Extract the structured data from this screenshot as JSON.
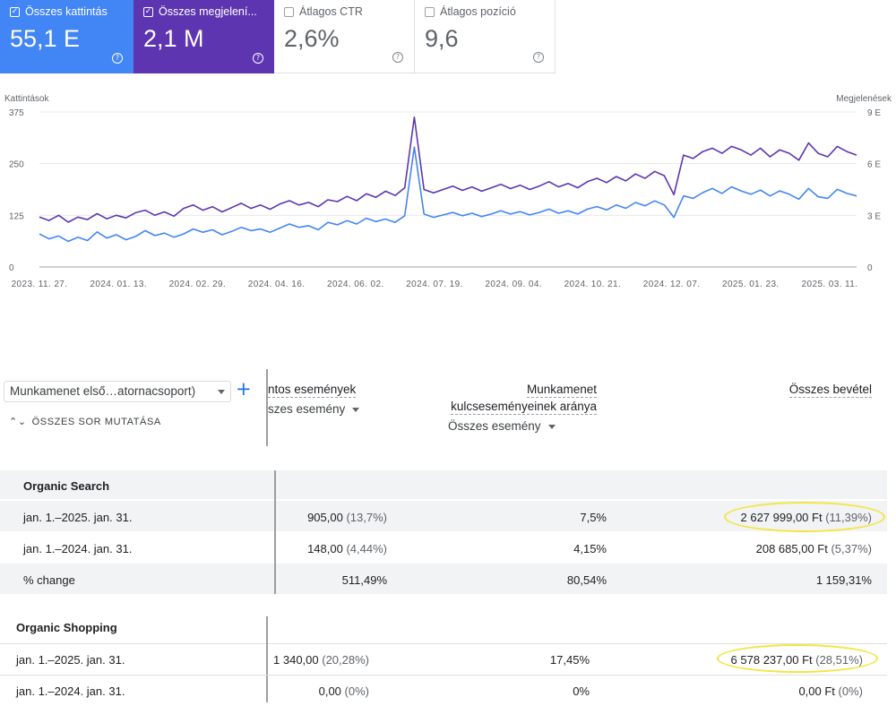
{
  "metrics": [
    {
      "label": "Összes kattintás",
      "value": "55,1 E",
      "checked": true,
      "color": "#4285f4"
    },
    {
      "label": "Összes megjelení...",
      "value": "2,1 M",
      "checked": true,
      "color": "#5e35b1"
    },
    {
      "label": "Átlagos CTR",
      "value": "2,6%",
      "checked": false
    },
    {
      "label": "Átlagos pozíció",
      "value": "9,6",
      "checked": false
    }
  ],
  "chart_data": {
    "type": "line",
    "left_axis": {
      "title": "Kattintások",
      "ticks": [
        "0",
        "125",
        "250",
        "375"
      ],
      "range": [
        0,
        375
      ]
    },
    "right_axis": {
      "title": "Megjelenések",
      "ticks": [
        "0",
        "3 E",
        "6 E",
        "9 E"
      ],
      "range": [
        0,
        9000
      ]
    },
    "x_ticks": [
      "2023. 11. 27.",
      "2024. 01. 13.",
      "2024. 02. 29.",
      "2024. 04. 16.",
      "2024. 06. 02.",
      "2024. 07. 19.",
      "2024. 09. 04.",
      "2024. 10. 21.",
      "2024. 12. 07.",
      "2025. 01. 23.",
      "2025. 03. 11."
    ],
    "grid": true,
    "series": [
      {
        "color": "#4285f4",
        "axis": "left",
        "values": [
          80,
          68,
          75,
          62,
          72,
          64,
          85,
          70,
          78,
          66,
          74,
          88,
          76,
          82,
          72,
          80,
          92,
          84,
          90,
          78,
          86,
          96,
          88,
          92,
          84,
          94,
          104,
          96,
          100,
          90,
          108,
          102,
          112,
          104,
          118,
          110,
          116,
          108,
          124,
          290,
          128,
          120,
          126,
          132,
          124,
          130,
          122,
          128,
          136,
          128,
          134,
          126,
          132,
          140,
          130,
          136,
          128,
          140,
          146,
          138,
          150,
          142,
          156,
          148,
          160,
          150,
          120,
          172,
          166,
          180,
          190,
          178,
          194,
          184,
          176,
          186,
          172,
          184,
          176,
          164,
          190,
          170,
          166,
          188,
          178,
          172
        ]
      },
      {
        "color": "#5e35b1",
        "axis": "right",
        "values": [
          2900,
          2700,
          3000,
          2600,
          2900,
          2750,
          3100,
          2800,
          3000,
          2850,
          3150,
          3300,
          3000,
          3200,
          2950,
          3400,
          3600,
          3300,
          3500,
          3200,
          3450,
          3700,
          3400,
          3600,
          3350,
          3650,
          3850,
          3600,
          3750,
          3500,
          3900,
          3800,
          4100,
          3850,
          4250,
          4050,
          4400,
          4150,
          4600,
          8700,
          4500,
          4300,
          4500,
          4700,
          4450,
          4650,
          4400,
          4600,
          4800,
          4550,
          4750,
          4500,
          4700,
          4950,
          4650,
          4850,
          4600,
          4950,
          5150,
          4900,
          5250,
          5000,
          5400,
          5150,
          5550,
          5300,
          4200,
          6500,
          6300,
          6700,
          6900,
          6600,
          7000,
          6800,
          6500,
          6900,
          6400,
          6800,
          6600,
          6200,
          7200,
          6600,
          6400,
          7000,
          6700,
          6500
        ]
      }
    ]
  },
  "table": {
    "dimension_select": "Munkamenet első…atornacsoport)",
    "add_button": "+",
    "show_all": "ÖSSZES SOR MUTATÁSA",
    "col1_title": "ntos események",
    "col1_sub": "szes esemény",
    "col2_title_1": "Munkamenet",
    "col2_title_2": "kulcseseményeinek aránya",
    "col2_sub": "Összes esemény",
    "col3_title": "Összes bevétel",
    "sections": [
      {
        "title": "Organic Search",
        "rows": [
          {
            "label": "jan. 1.–2025. jan. 31.",
            "c1": "905,00",
            "c1p": "(13,7%)",
            "c2": "7,5%",
            "c3": "2 627 999,00 Ft",
            "c3p": "(11,39%)",
            "highlight": true
          },
          {
            "label": "jan. 1.–2024. jan. 31.",
            "c1": "148,00",
            "c1p": "(4,44%)",
            "c2": "4,15%",
            "c3": "208 685,00 Ft",
            "c3p": "(5,37%)",
            "highlight": false
          },
          {
            "label": "% change",
            "c1": "511,49%",
            "c1p": "",
            "c2": "80,54%",
            "c3": "1 159,31%",
            "c3p": "",
            "highlight": false
          }
        ]
      },
      {
        "title": "Organic Shopping",
        "rows": [
          {
            "label": "jan. 1.–2025. jan. 31.",
            "c1": "1 340,00",
            "c1p": "(20,28%)",
            "c2": "17,45%",
            "c3": "6 578 237,00 Ft",
            "c3p": "(28,51%)",
            "highlight": true
          },
          {
            "label": "jan. 1.–2024. jan. 31.",
            "c1": "0,00",
            "c1p": "(0%)",
            "c2": "0%",
            "c3": "0,00 Ft",
            "c3p": "(0%)",
            "highlight": false
          }
        ]
      }
    ]
  }
}
